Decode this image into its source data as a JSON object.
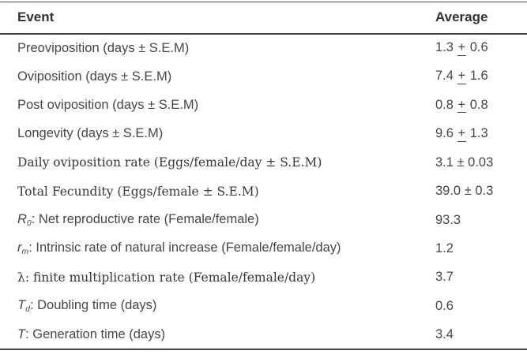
{
  "colors": {
    "text": "#43474a",
    "heading": "#2e3234",
    "line": "#43474a",
    "background": "#ffffff"
  },
  "table": {
    "columns": [
      {
        "label": "Event"
      },
      {
        "label": "Average"
      }
    ],
    "rows": [
      {
        "font": "sans",
        "event": [
          {
            "t": "Preoviposition (days ± S.E.M)"
          }
        ],
        "average": [
          {
            "t": "1.3 "
          },
          {
            "t": "+",
            "s": "pmu"
          },
          {
            "t": " 0.6"
          }
        ]
      },
      {
        "font": "sans",
        "event": [
          {
            "t": "Oviposition (days ± S.E.M)"
          }
        ],
        "average": [
          {
            "t": "7.4 "
          },
          {
            "t": "+",
            "s": "pmu"
          },
          {
            "t": " 1.6"
          }
        ]
      },
      {
        "font": "sans",
        "event": [
          {
            "t": "Post oviposition (days ± S.E.M)"
          }
        ],
        "average": [
          {
            "t": "0.8 "
          },
          {
            "t": "+",
            "s": "pmu"
          },
          {
            "t": " 0.8"
          }
        ]
      },
      {
        "font": "sans",
        "event": [
          {
            "t": "Longevity (days ± S.E.M)"
          }
        ],
        "average": [
          {
            "t": "9.6 "
          },
          {
            "t": "+",
            "s": "pmu"
          },
          {
            "t": " 1.3"
          }
        ]
      },
      {
        "font": "serif",
        "event": [
          {
            "t": "Daily oviposition rate (Eggs/female/day ± S.E.M)"
          }
        ],
        "average": [
          {
            "t": "3.1 ± 0.03"
          }
        ]
      },
      {
        "font": "serif",
        "event": [
          {
            "t": "Total Fecundity (Eggs/female ± S.E.M)"
          }
        ],
        "average": [
          {
            "t": "39.0 ± 0.3"
          }
        ]
      },
      {
        "font": "sans",
        "event": [
          {
            "t": "R",
            "s": "i"
          },
          {
            "t": "0",
            "s": "sub"
          },
          {
            "t": ": Net reproductive rate (Female/female)"
          }
        ],
        "average": [
          {
            "t": "93.3"
          }
        ]
      },
      {
        "font": "sans",
        "event": [
          {
            "t": "r",
            "s": "i"
          },
          {
            "t": "m",
            "s": "sub"
          },
          {
            "t": ": Intrinsic rate of natural increase (Female/female/day)"
          }
        ],
        "average": [
          {
            "t": "1.2"
          }
        ]
      },
      {
        "font": "serif",
        "event": [
          {
            "t": "λ: finite multiplication rate (Female/female/day)"
          }
        ],
        "average": [
          {
            "t": "3.7"
          }
        ]
      },
      {
        "font": "sans",
        "event": [
          {
            "t": "T",
            "s": "i"
          },
          {
            "t": "d",
            "s": "sub"
          },
          {
            "t": ": Doubling time (days)"
          }
        ],
        "average": [
          {
            "t": "0.6"
          }
        ]
      },
      {
        "font": "sans",
        "event": [
          {
            "t": "T",
            "s": "i"
          },
          {
            "t": ": Generation time (days)"
          }
        ],
        "average": [
          {
            "t": "3.4"
          }
        ]
      }
    ]
  }
}
